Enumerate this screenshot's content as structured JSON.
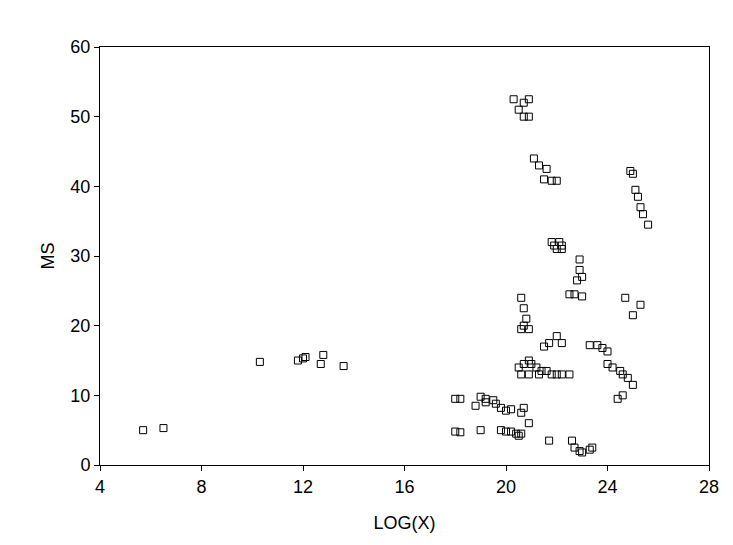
{
  "chart_data": {
    "type": "scatter",
    "x_label": "LOG(X)",
    "y_label": "MS",
    "x": [
      5.7,
      6.5,
      10.3,
      11.8,
      12.0,
      12.1,
      12.7,
      12.8,
      13.6,
      18.0,
      18.2,
      18.0,
      18.2,
      18.8,
      19.0,
      19.2,
      19.0,
      19.2,
      19.5,
      19.6,
      19.8,
      20.0,
      20.2,
      19.8,
      20.0,
      20.2,
      20.4,
      20.5,
      20.6,
      20.7,
      20.6,
      20.9,
      20.3,
      20.7,
      20.5,
      20.7,
      20.9,
      20.9,
      21.1,
      21.3,
      21.6,
      21.5,
      21.8,
      22.0,
      21.8,
      21.9,
      22.0,
      22.1,
      22.2,
      22.2,
      20.6,
      20.7,
      20.8,
      20.7,
      20.9,
      20.6,
      20.5,
      20.7,
      20.9,
      21.0,
      21.2,
      21.4,
      20.6,
      20.9,
      21.3,
      21.6,
      21.8,
      22.0,
      22.2,
      22.5,
      21.5,
      21.7,
      22.0,
      22.2,
      21.7,
      22.6,
      22.7,
      22.9,
      23.0,
      23.3,
      23.4,
      22.5,
      22.7,
      23.0,
      22.9,
      22.9,
      23.0,
      22.8,
      23.3,
      23.6,
      23.8,
      24.0,
      24.0,
      24.2,
      24.5,
      24.6,
      24.8,
      25.0,
      24.4,
      24.6,
      24.7,
      25.0,
      25.3,
      24.9,
      25.0,
      25.1,
      25.2,
      25.3,
      25.4,
      25.6
    ],
    "values": [
      5.0,
      5.3,
      14.8,
      15.0,
      15.3,
      15.5,
      14.5,
      15.8,
      14.2,
      9.5,
      9.5,
      4.8,
      4.7,
      8.5,
      9.8,
      9.5,
      5.0,
      9.0,
      9.3,
      8.8,
      8.2,
      7.8,
      8.0,
      5.0,
      4.8,
      4.8,
      4.5,
      4.2,
      4.5,
      8.2,
      7.5,
      6.0,
      52.5,
      52.0,
      51.0,
      50.0,
      50.0,
      52.5,
      44.0,
      43.0,
      42.5,
      41.0,
      40.8,
      40.8,
      32.0,
      31.5,
      31.0,
      32.0,
      31.5,
      31.0,
      24.0,
      22.5,
      21.0,
      20.0,
      19.5,
      19.5,
      14.0,
      14.5,
      15.0,
      14.5,
      14.0,
      13.5,
      13.0,
      13.0,
      13.0,
      13.5,
      13.0,
      13.0,
      13.0,
      13.0,
      17.0,
      17.5,
      18.5,
      17.5,
      3.5,
      3.5,
      2.5,
      2.0,
      1.8,
      2.2,
      2.5,
      24.5,
      24.5,
      24.2,
      29.5,
      28.0,
      27.0,
      26.5,
      17.2,
      17.2,
      16.8,
      16.3,
      14.5,
      14.0,
      13.5,
      13.0,
      12.5,
      11.5,
      9.5,
      10.0,
      24.0,
      21.5,
      23.0,
      42.2,
      41.8,
      39.5,
      38.5,
      37.0,
      36.0,
      34.5
    ],
    "color": "#000000",
    "marker": "square-open",
    "xlim": [
      4,
      28
    ],
    "xticks": [
      4,
      8,
      12,
      16,
      20,
      24,
      28
    ],
    "ylim": [
      0,
      60
    ],
    "yticks": [
      0,
      10,
      20,
      30,
      40,
      50,
      60
    ],
    "grid": false
  }
}
